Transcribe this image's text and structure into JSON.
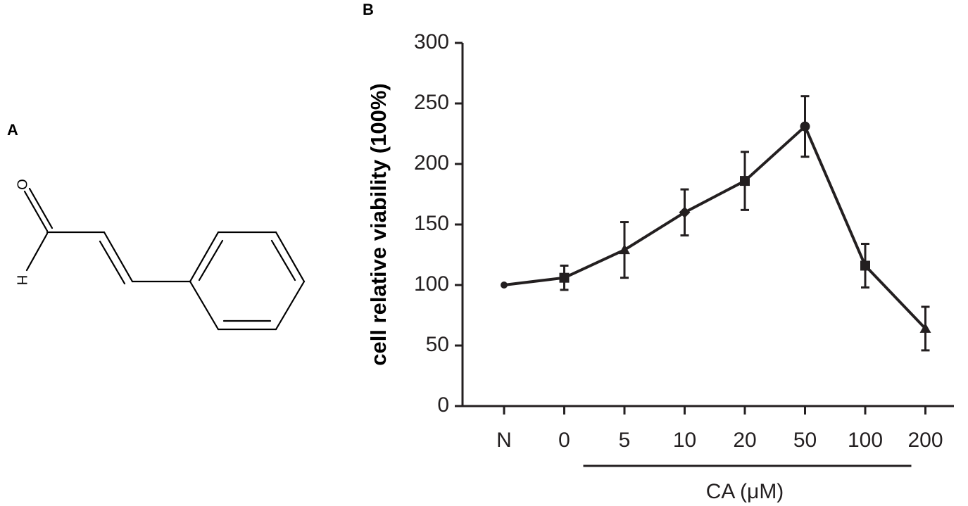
{
  "panel_a": {
    "letter": "A",
    "atoms": {
      "oxygen": "O",
      "hydrogen": "H"
    }
  },
  "panel_b": {
    "letter": "B"
  },
  "chart_data": {
    "type": "line",
    "categories": [
      "N",
      "0",
      "5",
      "10",
      "20",
      "50",
      "100",
      "200"
    ],
    "values": [
      100,
      106,
      129,
      160,
      186,
      231,
      116,
      64
    ],
    "error": [
      0,
      10,
      23,
      19,
      24,
      25,
      18,
      18
    ],
    "markers": [
      "circle",
      "square",
      "triangle",
      "diamond",
      "square",
      "circle",
      "square",
      "triangle"
    ],
    "xlabel": "",
    "ylabel": "cell relative viability (100%)",
    "ylim": [
      0,
      300
    ],
    "yticks": [
      0,
      50,
      100,
      150,
      200,
      250,
      300
    ],
    "group_label": "CA (μM)",
    "group_span": [
      "0",
      "200"
    ],
    "grid": false,
    "legend": "none",
    "color": "#231f20"
  }
}
